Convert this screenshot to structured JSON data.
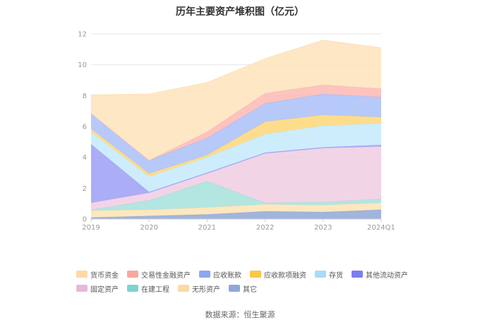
{
  "source_note": "数据来源：恒生聚源",
  "chart_data": {
    "type": "area",
    "stacked": true,
    "title": "历年主要资产堆积图（亿元）",
    "x": [
      "2019",
      "2020",
      "2021",
      "2022",
      "2023",
      "2024Q1"
    ],
    "ylim": [
      0,
      12
    ],
    "yticks": [
      0,
      2,
      4,
      6,
      8,
      10,
      12
    ],
    "grid": true,
    "legend_position": "bottom",
    "series": [
      {
        "name": "其它",
        "color": "#8fa8d8",
        "values": [
          0.1,
          0.2,
          0.3,
          0.5,
          0.45,
          0.6
        ]
      },
      {
        "name": "无形资产",
        "color": "#fde3b3",
        "values": [
          0.45,
          0.4,
          0.45,
          0.45,
          0.45,
          0.45
        ]
      },
      {
        "name": "在建工程",
        "color": "#a6e0dc",
        "values": [
          0.05,
          0.6,
          1.7,
          0.1,
          0.2,
          0.25
        ]
      },
      {
        "name": "固定资产",
        "color": "#f0cce3",
        "values": [
          0.45,
          0.5,
          0.5,
          3.2,
          3.5,
          3.4
        ]
      },
      {
        "name": "其他流动资产",
        "color": "#9c9ff5",
        "values": [
          3.8,
          0.05,
          0.05,
          0.05,
          0.05,
          0.1
        ]
      },
      {
        "name": "存货",
        "color": "#c4eafb",
        "values": [
          0.8,
          1.0,
          1.0,
          1.2,
          1.4,
          1.4
        ]
      },
      {
        "name": "应收款项融资",
        "color": "#fdd778",
        "values": [
          0.2,
          0.2,
          0.15,
          0.8,
          0.7,
          0.4
        ]
      },
      {
        "name": "应收账款",
        "color": "#a9bff8",
        "values": [
          1.0,
          0.85,
          1.1,
          1.2,
          1.35,
          1.3
        ]
      },
      {
        "name": "交易性金融资产",
        "color": "#fbb8b4",
        "values": [
          0.0,
          0.0,
          0.4,
          0.65,
          0.6,
          0.55
        ]
      },
      {
        "name": "货币资金",
        "color": "#fde3bb",
        "values": [
          1.2,
          4.3,
          3.2,
          2.25,
          2.9,
          2.65
        ]
      }
    ]
  },
  "legend_rows": [
    [
      {
        "name": "货币资金",
        "color": "#fdd9a6"
      },
      {
        "name": "交易性金融资产",
        "color": "#f7a89f"
      },
      {
        "name": "应收账款",
        "color": "#8aa7f0"
      },
      {
        "name": "应收款项融资",
        "color": "#fbc748"
      },
      {
        "name": "存货",
        "color": "#a7dcf7"
      },
      {
        "name": "其他流动资产",
        "color": "#7b7ef0"
      }
    ],
    [
      {
        "name": "固定资产",
        "color": "#e8b8d8"
      },
      {
        "name": "在建工程",
        "color": "#7fd4d0"
      },
      {
        "name": "无形资产",
        "color": "#fdd9a6"
      },
      {
        "name": "其它",
        "color": "#8fa8d8"
      }
    ]
  ]
}
